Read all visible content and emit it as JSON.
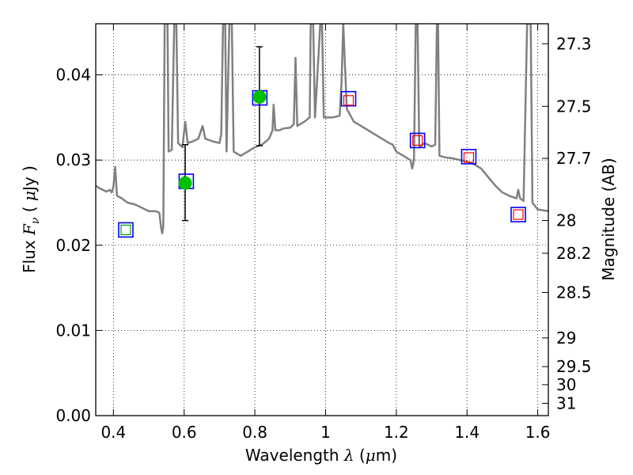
{
  "chart_data": {
    "type": "scatter",
    "xlabel": {
      "prefix": "Wavelength  ",
      "symbol": "λ",
      "unit_open": " (",
      "unit_mu": "μ",
      "unit_close": "m)"
    },
    "ylabel": {
      "prefix": "Flux  ",
      "symbol": "F",
      "sub": "ν",
      "unit_open": "  ( ",
      "unit_mu": "μ",
      "unit_close": "Jy )"
    },
    "y2label": "Magnitude (AB)",
    "xlim": [
      0.35,
      1.63
    ],
    "ylim": [
      0.0,
      0.046
    ],
    "grid": true,
    "x_ticks": [
      {
        "value": 0.4,
        "label": "0.4"
      },
      {
        "value": 0.6,
        "label": "0.6"
      },
      {
        "value": 0.8,
        "label": "0.8"
      },
      {
        "value": 1.0,
        "label": "1"
      },
      {
        "value": 1.2,
        "label": "1.2"
      },
      {
        "value": 1.4,
        "label": "1.4"
      },
      {
        "value": 1.6,
        "label": "1.6"
      }
    ],
    "y_ticks": [
      {
        "value": 0.0,
        "label": "0.00"
      },
      {
        "value": 0.01,
        "label": "0.01"
      },
      {
        "value": 0.02,
        "label": "0.02"
      },
      {
        "value": 0.03,
        "label": "0.03"
      },
      {
        "value": 0.04,
        "label": "0.04"
      }
    ],
    "mag_ticks": [
      {
        "mag": 27.3,
        "label": "27.3"
      },
      {
        "mag": 27.5,
        "label": "27.5"
      },
      {
        "mag": 27.7,
        "label": "27.7"
      },
      {
        "mag": 28.0,
        "label": "28"
      },
      {
        "mag": 28.2,
        "label": "28.2"
      },
      {
        "mag": 28.5,
        "label": "28.5"
      },
      {
        "mag": 29.0,
        "label": "29"
      },
      {
        "mag": 29.5,
        "label": "29.5"
      },
      {
        "mag": 30.0,
        "label": "30"
      },
      {
        "mag": 31.0,
        "label": "31"
      }
    ],
    "series": [
      {
        "kind": "model-spectrum",
        "color": "#808080",
        "points": [
          [
            0.35,
            0.027
          ],
          [
            0.36,
            0.0267
          ],
          [
            0.37,
            0.0265
          ],
          [
            0.38,
            0.0263
          ],
          [
            0.39,
            0.0265
          ],
          [
            0.395,
            0.0262
          ],
          [
            0.4,
            0.0268
          ],
          [
            0.405,
            0.0292
          ],
          [
            0.41,
            0.0258
          ],
          [
            0.42,
            0.0256
          ],
          [
            0.44,
            0.025
          ],
          [
            0.46,
            0.0248
          ],
          [
            0.48,
            0.0244
          ],
          [
            0.5,
            0.024
          ],
          [
            0.52,
            0.024
          ],
          [
            0.53,
            0.0238
          ],
          [
            0.535,
            0.022
          ],
          [
            0.538,
            0.0214
          ],
          [
            0.541,
            0.0222
          ],
          [
            0.545,
            0.046
          ],
          [
            0.553,
            0.046
          ],
          [
            0.556,
            0.031
          ],
          [
            0.565,
            0.0312
          ],
          [
            0.572,
            0.046
          ],
          [
            0.578,
            0.046
          ],
          [
            0.583,
            0.032
          ],
          [
            0.595,
            0.0315
          ],
          [
            0.603,
            0.0345
          ],
          [
            0.61,
            0.032
          ],
          [
            0.625,
            0.0322
          ],
          [
            0.64,
            0.0325
          ],
          [
            0.652,
            0.034
          ],
          [
            0.66,
            0.0325
          ],
          [
            0.68,
            0.0322
          ],
          [
            0.7,
            0.032
          ],
          [
            0.705,
            0.033
          ],
          [
            0.71,
            0.046
          ],
          [
            0.716,
            0.046
          ],
          [
            0.72,
            0.031
          ],
          [
            0.728,
            0.046
          ],
          [
            0.735,
            0.046
          ],
          [
            0.74,
            0.031
          ],
          [
            0.76,
            0.0305
          ],
          [
            0.78,
            0.031
          ],
          [
            0.8,
            0.0315
          ],
          [
            0.82,
            0.0318
          ],
          [
            0.84,
            0.0325
          ],
          [
            0.85,
            0.0335
          ],
          [
            0.853,
            0.0365
          ],
          [
            0.858,
            0.0335
          ],
          [
            0.87,
            0.0335
          ],
          [
            0.88,
            0.0337
          ],
          [
            0.9,
            0.0338
          ],
          [
            0.91,
            0.0342
          ],
          [
            0.915,
            0.042
          ],
          [
            0.92,
            0.034
          ],
          [
            0.94,
            0.0345
          ],
          [
            0.955,
            0.035
          ],
          [
            0.958,
            0.046
          ],
          [
            0.965,
            0.046
          ],
          [
            0.97,
            0.035
          ],
          [
            0.985,
            0.046
          ],
          [
            0.99,
            0.046
          ],
          [
            0.995,
            0.035
          ],
          [
            1.02,
            0.035
          ],
          [
            1.04,
            0.0352
          ],
          [
            1.045,
            0.039
          ],
          [
            1.05,
            0.046
          ],
          [
            1.058,
            0.038
          ],
          [
            1.06,
            0.036
          ],
          [
            1.08,
            0.0345
          ],
          [
            1.1,
            0.034
          ],
          [
            1.12,
            0.0335
          ],
          [
            1.14,
            0.033
          ],
          [
            1.16,
            0.0325
          ],
          [
            1.18,
            0.032
          ],
          [
            1.19,
            0.0318
          ],
          [
            1.2,
            0.031
          ],
          [
            1.22,
            0.0305
          ],
          [
            1.24,
            0.03
          ],
          [
            1.245,
            0.029
          ],
          [
            1.25,
            0.03
          ],
          [
            1.255,
            0.046
          ],
          [
            1.26,
            0.046
          ],
          [
            1.265,
            0.0315
          ],
          [
            1.28,
            0.032
          ],
          [
            1.3,
            0.0316
          ],
          [
            1.31,
            0.0318
          ],
          [
            1.315,
            0.046
          ],
          [
            1.318,
            0.046
          ],
          [
            1.322,
            0.0305
          ],
          [
            1.34,
            0.0303
          ],
          [
            1.36,
            0.0302
          ],
          [
            1.38,
            0.03
          ],
          [
            1.4,
            0.0298
          ],
          [
            1.42,
            0.0295
          ],
          [
            1.44,
            0.029
          ],
          [
            1.46,
            0.028
          ],
          [
            1.48,
            0.027
          ],
          [
            1.5,
            0.0262
          ],
          [
            1.51,
            0.026
          ],
          [
            1.52,
            0.0258
          ],
          [
            1.54,
            0.0255
          ],
          [
            1.545,
            0.0265
          ],
          [
            1.55,
            0.0255
          ],
          [
            1.56,
            0.0252
          ],
          [
            1.57,
            0.046
          ],
          [
            1.58,
            0.046
          ],
          [
            1.585,
            0.025
          ],
          [
            1.6,
            0.0242
          ],
          [
            1.63,
            0.024
          ]
        ]
      },
      {
        "kind": "photometry-detections",
        "color": "#00c000",
        "points": [
          {
            "x": 0.603,
            "y": 0.0273,
            "yerr_low": 0.0229,
            "yerr_high": 0.0318
          },
          {
            "x": 0.813,
            "y": 0.0374,
            "yerr_low": 0.0317,
            "yerr_high": 0.0433
          }
        ]
      },
      {
        "kind": "model-bandpass-squares",
        "color": "#0000ff",
        "points": [
          {
            "x": 0.435,
            "y": 0.0218
          },
          {
            "x": 0.606,
            "y": 0.0275
          },
          {
            "x": 0.814,
            "y": 0.0373
          },
          {
            "x": 1.065,
            "y": 0.0372
          },
          {
            "x": 1.26,
            "y": 0.0323
          },
          {
            "x": 1.405,
            "y": 0.0304
          },
          {
            "x": 1.545,
            "y": 0.0236
          }
        ]
      },
      {
        "kind": "upper-limit-small-squares",
        "color": "#ff0000",
        "points": [
          {
            "x": 1.065,
            "y": 0.037
          },
          {
            "x": 1.26,
            "y": 0.0323
          },
          {
            "x": 1.405,
            "y": 0.0303
          },
          {
            "x": 1.545,
            "y": 0.0236
          }
        ]
      },
      {
        "kind": "small-square-green",
        "color": "#00a000",
        "points": [
          {
            "x": 0.435,
            "y": 0.0218
          }
        ]
      }
    ]
  }
}
